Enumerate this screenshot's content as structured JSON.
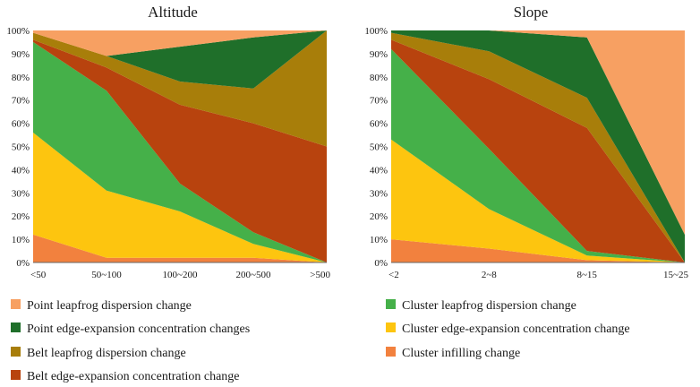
{
  "chart_data": [
    {
      "type": "area",
      "stacked": true,
      "title": "Altitude",
      "categories": [
        "<50",
        "50~100",
        "100~200",
        "200~500",
        ">500"
      ],
      "ylim": [
        0,
        100
      ],
      "yticks": [
        "0%",
        "10%",
        "20%",
        "30%",
        "40%",
        "50%",
        "60%",
        "70%",
        "80%",
        "90%",
        "100%"
      ],
      "series": [
        {
          "name": "Cluster infilling change",
          "values": [
            12,
            2,
            2,
            2,
            0
          ]
        },
        {
          "name": "Cluster edge-expansion concentration change",
          "values": [
            44,
            29,
            20,
            6,
            0
          ]
        },
        {
          "name": "Cluster leapfrog dispersion change",
          "values": [
            39,
            43,
            12,
            5,
            0
          ]
        },
        {
          "name": "Belt edge-expansion concentration change",
          "values": [
            1,
            10,
            34,
            47,
            50
          ]
        },
        {
          "name": "Belt leapfrog dispersion change",
          "values": [
            3,
            5,
            10,
            15,
            50
          ]
        },
        {
          "name": "Point edge-expansion concentration changes",
          "values": [
            0,
            0,
            15,
            22,
            0
          ]
        },
        {
          "name": "Point leapfrog dispersion change",
          "values": [
            1,
            11,
            7,
            3,
            0
          ]
        }
      ]
    },
    {
      "type": "area",
      "stacked": true,
      "title": "Slope",
      "categories": [
        "<2",
        "2~8",
        "8~15",
        "15~25"
      ],
      "ylim": [
        0,
        100
      ],
      "yticks": [
        "0%",
        "10%",
        "20%",
        "30%",
        "40%",
        "50%",
        "60%",
        "70%",
        "80%",
        "90%",
        "100%"
      ],
      "series": [
        {
          "name": "Cluster infilling change",
          "values": [
            10,
            6,
            1,
            0
          ]
        },
        {
          "name": "Cluster edge-expansion concentration change",
          "values": [
            43,
            17,
            2,
            0
          ]
        },
        {
          "name": "Cluster leapfrog dispersion change",
          "values": [
            39,
            26,
            2,
            0
          ]
        },
        {
          "name": "Belt edge-expansion concentration change",
          "values": [
            4,
            30,
            53,
            0
          ]
        },
        {
          "name": "Belt leapfrog dispersion change",
          "values": [
            3,
            12,
            13,
            0
          ]
        },
        {
          "name": "Point edge-expansion concentration changes",
          "values": [
            1,
            9,
            26,
            12
          ]
        },
        {
          "name": "Point leapfrog dispersion change",
          "values": [
            0,
            0,
            3,
            88
          ]
        }
      ]
    }
  ],
  "colors": {
    "Cluster infilling change": "#f2813e",
    "Cluster edge-expansion concentration change": "#fdc50f",
    "Cluster leapfrog dispersion change": "#45b049",
    "Belt edge-expansion concentration change": "#b8430e",
    "Belt leapfrog dispersion change": "#a87e0a",
    "Point edge-expansion concentration changes": "#1f6f2a",
    "Point leapfrog dispersion change": "#f7a062"
  },
  "legend": [
    {
      "label": "Point leapfrog dispersion change",
      "color": "#f7a062"
    },
    {
      "label": "Point edge-expansion concentration changes",
      "color": "#1f6f2a"
    },
    {
      "label": "Belt leapfrog dispersion change",
      "color": "#a87e0a"
    },
    {
      "label": "Belt edge-expansion concentration change",
      "color": "#b8430e"
    },
    {
      "label": "Cluster leapfrog dispersion change",
      "color": "#45b049"
    },
    {
      "label": "Cluster edge-expansion concentration change",
      "color": "#fdc50f"
    },
    {
      "label": "Cluster infilling change",
      "color": "#f2813e"
    }
  ]
}
